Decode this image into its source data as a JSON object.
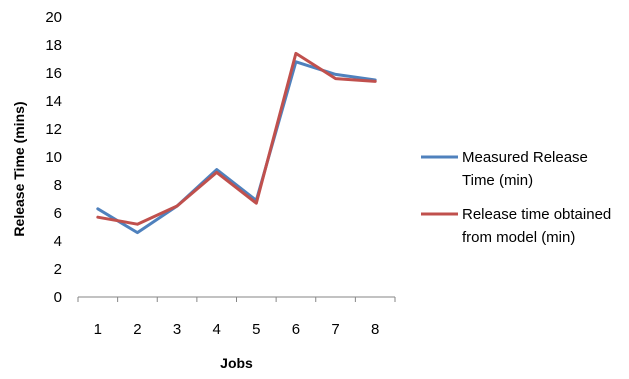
{
  "chart_data": {
    "type": "line",
    "title": "",
    "xlabel": "Jobs",
    "ylabel": "Release Time (mins)",
    "categories": [
      "1",
      "2",
      "3",
      "4",
      "5",
      "6",
      "7",
      "8"
    ],
    "ylim": [
      0,
      20
    ],
    "yticks": [
      "0",
      "2",
      "4",
      "6",
      "8",
      "10",
      "12",
      "14",
      "16",
      "18",
      "20"
    ],
    "grid": false,
    "legend_position": "right",
    "series": [
      {
        "name": "Measured  Release Time (min)",
        "legend_lines": [
          "Measured  Release",
          "Time (min)"
        ],
        "color": "#4F81BD",
        "values": [
          6.3,
          4.6,
          6.5,
          9.1,
          6.9,
          16.8,
          15.9,
          15.5
        ]
      },
      {
        "name": "Release time obtained from model (min)",
        "legend_lines": [
          "Release time obtained",
          "from model (min)"
        ],
        "color": "#C0504D",
        "values": [
          5.7,
          5.2,
          6.5,
          8.9,
          6.7,
          17.4,
          15.6,
          15.4
        ]
      }
    ]
  }
}
